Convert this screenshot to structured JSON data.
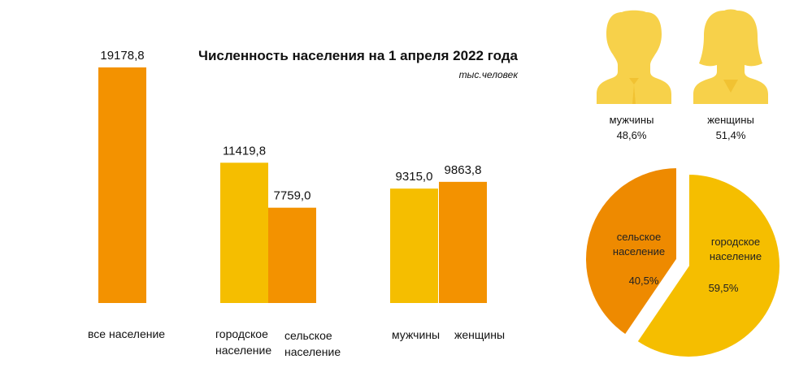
{
  "chart_data": [
    {
      "type": "bar",
      "title": "Численность населения на 1 апреля 2022 года",
      "unit": "тыс.человек",
      "ylim": [
        0,
        19178.8
      ],
      "bars": [
        {
          "label_lines": [
            "все население"
          ],
          "value": 19178.8,
          "value_label": "19178,8",
          "color": "#F39200"
        },
        {
          "label_lines": [
            "городское",
            "население"
          ],
          "value": 11419.8,
          "value_label": "11419,8",
          "color": "#F5BE00"
        },
        {
          "label_lines": [
            "сельское",
            "население"
          ],
          "value": 7759.0,
          "value_label": "7759,0",
          "color": "#F39200"
        },
        {
          "label_lines": [
            "мужчины"
          ],
          "value": 9315.0,
          "value_label": "9315,0",
          "color": "#F5BE00"
        },
        {
          "label_lines": [
            "женщины"
          ],
          "value": 9863.8,
          "value_label": "9863,8",
          "color": "#F39200"
        }
      ]
    },
    {
      "type": "pie",
      "slices": [
        {
          "label_lines": [
            "городское",
            "население"
          ],
          "value": 59.5,
          "value_label": "59,5%",
          "color": "#F5BE00"
        },
        {
          "label_lines": [
            "сельское",
            "население"
          ],
          "value": 40.5,
          "value_label": "40,5%",
          "color": "#EE8A00"
        }
      ]
    }
  ],
  "gender": {
    "men": {
      "label": "мужчины",
      "percent": "48,6%"
    },
    "women": {
      "label": "женщины",
      "percent": "51,4%"
    },
    "icon_color": "#F7D14A"
  }
}
